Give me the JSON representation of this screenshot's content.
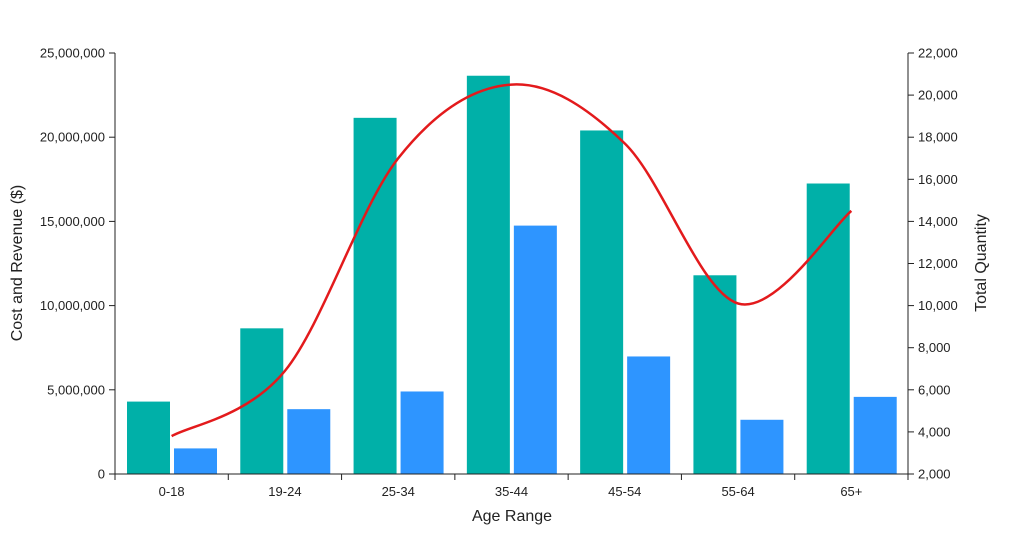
{
  "chart_data": {
    "type": "bar",
    "categories": [
      "0-18",
      "19-24",
      "25-34",
      "35-44",
      "45-54",
      "55-64",
      "65+"
    ],
    "series": [
      {
        "type": "bar",
        "axis": "left",
        "color": "#00b0a8",
        "values": [
          4300000,
          8650000,
          21150000,
          23650000,
          20400000,
          11800000,
          17250000
        ]
      },
      {
        "type": "bar",
        "axis": "left",
        "color": "#2e95ff",
        "values": [
          1520000,
          3850000,
          4900000,
          14750000,
          6980000,
          3220000,
          4580000
        ]
      },
      {
        "type": "line",
        "axis": "right",
        "color": "#e31a1c",
        "values": [
          3800,
          6900,
          17000,
          20500,
          17700,
          10100,
          14500
        ]
      }
    ],
    "xlabel": "Age Range",
    "ylabel": "Cost and Revenue ($)",
    "y2label": "Total Quantity",
    "ylim": [
      0,
      25000000
    ],
    "y2lim": [
      2000,
      22000
    ],
    "yticks": [
      "0",
      "5,000,000",
      "10,000,000",
      "15,000,000",
      "20,000,000",
      "25,000,000"
    ],
    "y2ticks": [
      "2,000",
      "4,000",
      "6,000",
      "8,000",
      "10,000",
      "12,000",
      "14,000",
      "16,000",
      "18,000",
      "20,000",
      "22,000"
    ],
    "grid": false,
    "legend": "none"
  }
}
